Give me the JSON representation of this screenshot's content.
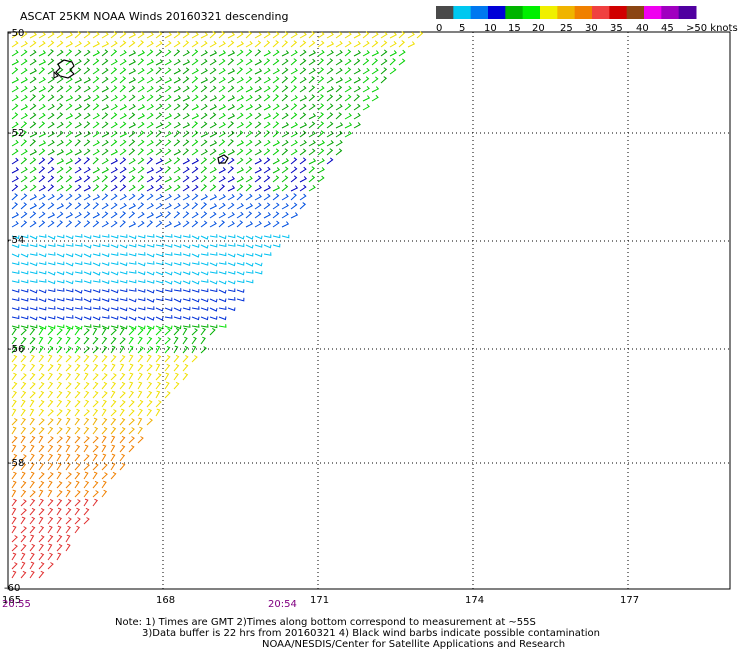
{
  "title": "ASCAT 25KM NOAA Winds 20160321 descending",
  "legend": {
    "labels": [
      "0",
      "5",
      "10",
      "15",
      "20",
      "25",
      "30",
      "35",
      "40",
      "45",
      ">50 knots"
    ],
    "colors": [
      "#4a4a4a",
      "#00c8f0",
      "#0078f0",
      "#0000d8",
      "#00b400",
      "#00f000",
      "#f0f000",
      "#f0b400",
      "#f08000",
      "#f04040",
      "#d00000",
      "#8b4513",
      "#f000f0",
      "#a000c0",
      "#5000a0"
    ]
  },
  "axes": {
    "lat_labels": [
      "-50",
      "-52",
      "-54",
      "-56",
      "-58",
      "-60"
    ],
    "lon_labels": [
      "165",
      "168",
      "171",
      "174",
      "177"
    ]
  },
  "time_labels": {
    "left": "20:55",
    "center": "20:54"
  },
  "notes": {
    "line1": "Note: 1) Times are GMT 2)Times along bottom correspond to measurement at ~55S",
    "line2": "3)Data buffer is 22 hrs from 20160321 4) Black wind barbs indicate possible contamination",
    "line3": "NOAA/NESDIS/Center for Satellite Applications and Research"
  }
}
